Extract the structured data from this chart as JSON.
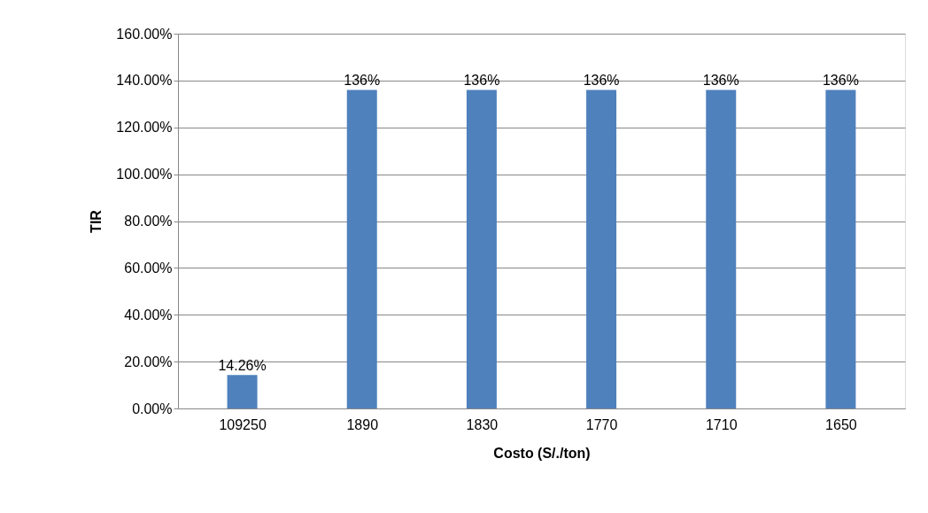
{
  "chart_data": {
    "type": "bar",
    "xlabel": "Costo (S/./ton)",
    "ylabel": "TIR",
    "categories": [
      "109250",
      "1890",
      "1830",
      "1770",
      "1710",
      "1650"
    ],
    "values": [
      14.26,
      136,
      136,
      136,
      136,
      136
    ],
    "color": "#4f81bd",
    "value_labels": [
      "14.26%",
      "136%",
      "136%",
      "136%",
      "136%",
      "136%"
    ],
    "ylim": [
      0,
      160
    ],
    "yticks": [
      {
        "value": 0,
        "label": "0.00%"
      },
      {
        "value": 20,
        "label": "20.00%"
      },
      {
        "value": 40,
        "label": "40.00%"
      },
      {
        "value": 60,
        "label": "60.00%"
      },
      {
        "value": 80,
        "label": "80.00%"
      },
      {
        "value": 100,
        "label": "100.00%"
      },
      {
        "value": 120,
        "label": "120.00%"
      },
      {
        "value": 140,
        "label": "140.00%"
      },
      {
        "value": 160,
        "label": "160.00%"
      }
    ],
    "grid": "y"
  }
}
